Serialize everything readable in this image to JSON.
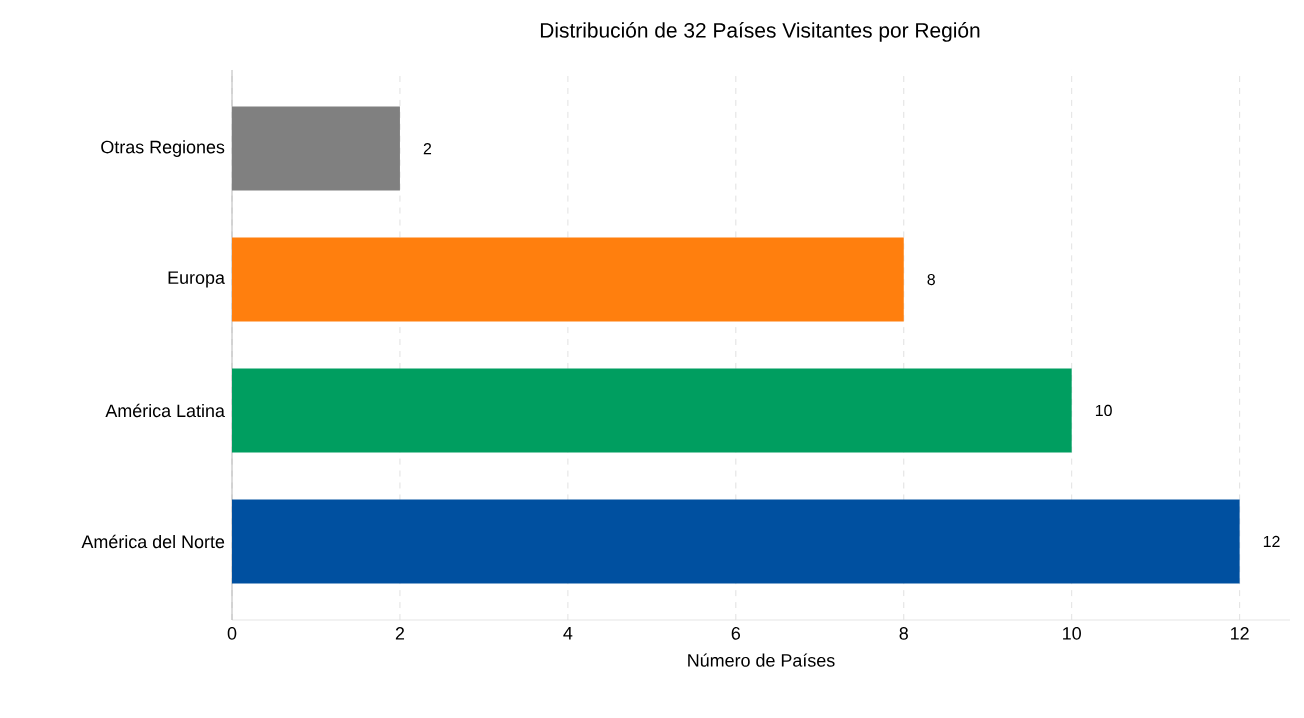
{
  "chart_data": {
    "type": "bar",
    "orientation": "horizontal",
    "title": "Distribución de 32 Países Visitantes por Región",
    "xlabel": "Número de Países",
    "categories": [
      "Otras Regiones",
      "Europa",
      "América Latina",
      "América del Norte"
    ],
    "values": [
      2,
      8,
      10,
      12
    ],
    "colors": [
      "#808080",
      "#ff7f0e",
      "#009e60",
      "#0050a0"
    ],
    "xlim": [
      0,
      12.6
    ],
    "xticks": [
      0,
      2,
      4,
      6,
      8,
      10,
      12
    ],
    "grid": "x",
    "data_labels": true
  }
}
